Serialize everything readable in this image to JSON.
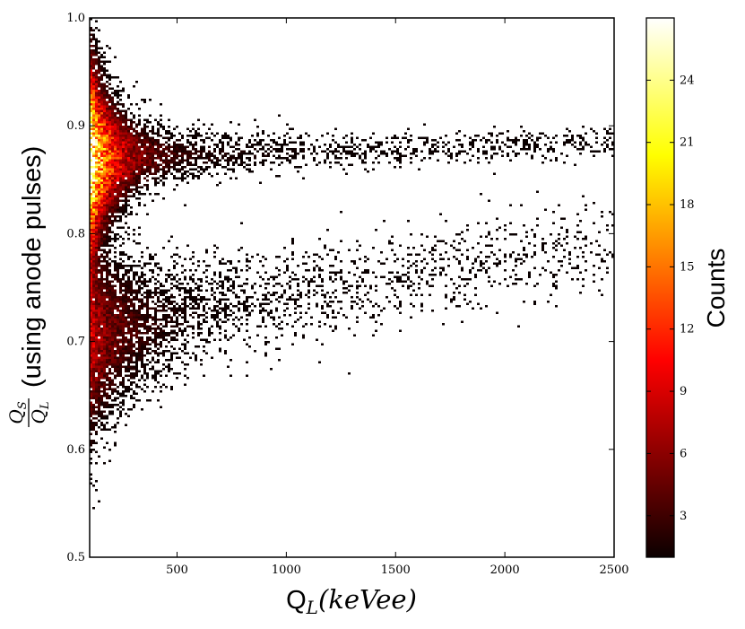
{
  "chart_data": {
    "type": "heatmap",
    "title": "",
    "xlabel": {
      "main": "Q",
      "sub": "L",
      "rest": "(keVee)"
    },
    "ylabel": {
      "num_main": "Q",
      "num_sub": "S",
      "den_main": "Q",
      "den_sub": "L",
      "rest": "(using anode pulses)"
    },
    "xlim": [
      100,
      2500
    ],
    "ylim": [
      0.5,
      1.0
    ],
    "xticks": [
      "500",
      "1000",
      "1500",
      "2000",
      "2500"
    ],
    "xtick_values": [
      500,
      1000,
      1500,
      2000,
      2500
    ],
    "yticks": [
      "0.5",
      "0.6",
      "0.7",
      "0.8",
      "0.9",
      "1.0"
    ],
    "ytick_values": [
      0.5,
      0.6,
      0.7,
      0.8,
      0.9,
      1.0
    ],
    "grid": false,
    "colormap": "hot",
    "colorbar": {
      "label": "Counts",
      "range": [
        1,
        27
      ],
      "ticks": [
        "3",
        "6",
        "9",
        "12",
        "15",
        "18",
        "21",
        "24"
      ],
      "tick_values": [
        3,
        6,
        9,
        12,
        15,
        18,
        21,
        24
      ]
    },
    "bands": [
      {
        "name": "upper band",
        "x_range": [
          100,
          2500
        ],
        "y_center_start": 0.87,
        "y_center_end": 0.885,
        "peak_counts": 24
      },
      {
        "name": "lower band",
        "x_range": [
          100,
          2500
        ],
        "y_center_start": 0.7,
        "y_center_end": 0.79,
        "peak_counts": 9
      }
    ]
  }
}
